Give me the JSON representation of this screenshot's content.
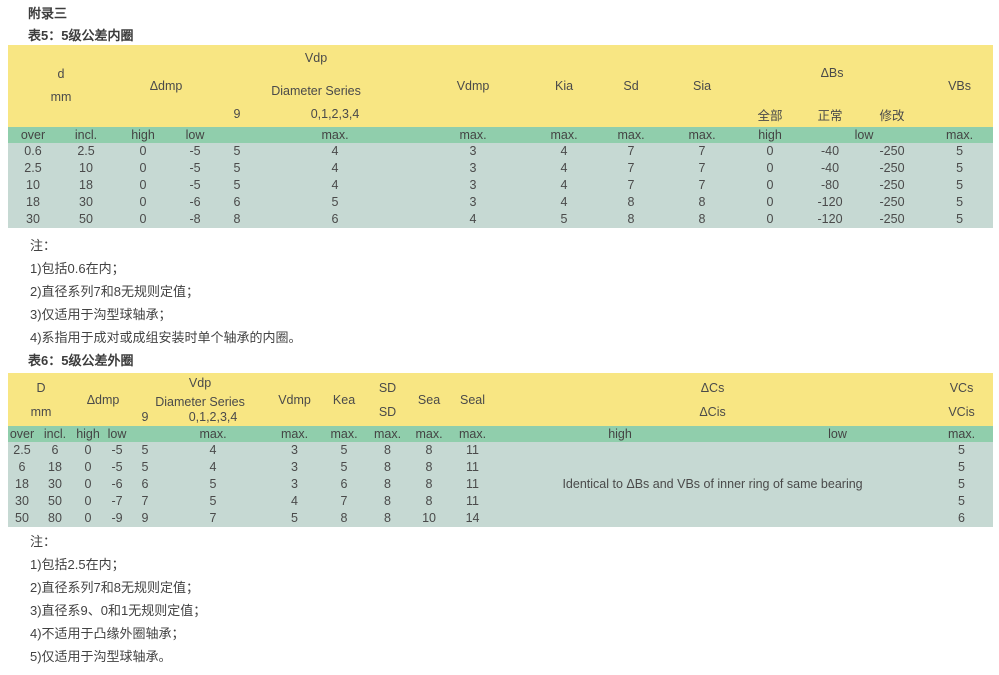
{
  "page": {
    "appendix_title": "附录三"
  },
  "table5": {
    "title": "表5：5级公差内圈",
    "header": {
      "d": "d",
      "unit": "mm",
      "delta_dmp": "Δdmp",
      "vdp": "Vdp",
      "diameter_series": "Diameter Series",
      "series_9": "9",
      "series_01234": "0,1,2,3,4",
      "vdmp": "Vdmp",
      "kia": "Kia",
      "sd": "Sd",
      "sia": "Sia",
      "delta_bs": "ΔBs",
      "bs_all": "全部",
      "bs_normal": "正常",
      "bs_modified": "修改",
      "vbs": "VBs"
    },
    "subheader": {
      "over": "over",
      "incl": "incl.",
      "high": "high",
      "low": "low",
      "empty9": "",
      "max_series": "max.",
      "max_vdmp": "max.",
      "max_kia": "max.",
      "max_sd": "max.",
      "max_sia": "max.",
      "bs_high": "high",
      "bs_low": "low",
      "max_vbs": "max."
    },
    "rows": [
      [
        "0.6",
        "2.5",
        "0",
        "-5",
        "5",
        "4",
        "3",
        "4",
        "7",
        "7",
        "0",
        "-40",
        "-250",
        "5"
      ],
      [
        "2.5",
        "10",
        "0",
        "-5",
        "5",
        "4",
        "3",
        "4",
        "7",
        "7",
        "0",
        "-40",
        "-250",
        "5"
      ],
      [
        "10",
        "18",
        "0",
        "-5",
        "5",
        "4",
        "3",
        "4",
        "7",
        "7",
        "0",
        "-80",
        "-250",
        "5"
      ],
      [
        "18",
        "30",
        "0",
        "-6",
        "6",
        "5",
        "3",
        "4",
        "8",
        "8",
        "0",
        "-120",
        "-250",
        "5"
      ],
      [
        "30",
        "50",
        "0",
        "-8",
        "8",
        "6",
        "4",
        "5",
        "8",
        "8",
        "0",
        "-120",
        "-250",
        "5"
      ]
    ],
    "notes": [
      "注：",
      "1)包括0.6在内；",
      "2)直径系列7和8无规则定值；",
      "3)仅适用于沟型球轴承；",
      "4)系指用于成对或成组安装时单个轴承的内圈。"
    ]
  },
  "table6": {
    "title": "表6：5级公差外圈",
    "header": {
      "d": "D",
      "unit": "mm",
      "delta_dmp": "Δdmp",
      "vdp": "Vdp",
      "diameter_series": "Diameter Series",
      "series_9": "9",
      "series_01234": "0,1,2,3,4",
      "vdmp": "Vdmp",
      "kea": "Kea",
      "sd_top": "SD",
      "sd_bottom": "SD",
      "sea": "Sea",
      "seal": "Seal",
      "delta_cs": "ΔCs",
      "delta_cis": "ΔCis",
      "vcs": "VCs",
      "vcis": "VCis"
    },
    "subheader": {
      "over": "over",
      "incl": "incl.",
      "high": "high",
      "low": "low",
      "empty9": "",
      "max_series": "max.",
      "max_vdmp": "max.",
      "max_kea": "max.",
      "max_sd": "max.",
      "max_sea": "max.",
      "max_seal": "max.",
      "cs_high": "high",
      "cs_low": "low",
      "max_vcs": "max."
    },
    "merged_note": "Identical to ΔBs and VBs of inner ring of same bearing",
    "rows": [
      [
        "2.5",
        "6",
        "0",
        "-5",
        "5",
        "4",
        "3",
        "5",
        "8",
        "8",
        "11",
        "5"
      ],
      [
        "6",
        "18",
        "0",
        "-5",
        "5",
        "4",
        "3",
        "5",
        "8",
        "8",
        "11",
        "5"
      ],
      [
        "18",
        "30",
        "0",
        "-6",
        "6",
        "5",
        "3",
        "6",
        "8",
        "8",
        "11",
        "5"
      ],
      [
        "30",
        "50",
        "0",
        "-7",
        "7",
        "5",
        "4",
        "7",
        "8",
        "8",
        "11",
        "5"
      ],
      [
        "50",
        "80",
        "0",
        "-9",
        "9",
        "7",
        "5",
        "8",
        "8",
        "10",
        "14",
        "6"
      ]
    ],
    "notes": [
      "注：",
      "1)包括2.5在内；",
      "2)直径系列7和8无规则定值；",
      "3)直径系9、0和1无规则定值；",
      "4)不适用于凸缘外圈轴承；",
      "5)仅适用于沟型球轴承。"
    ]
  }
}
